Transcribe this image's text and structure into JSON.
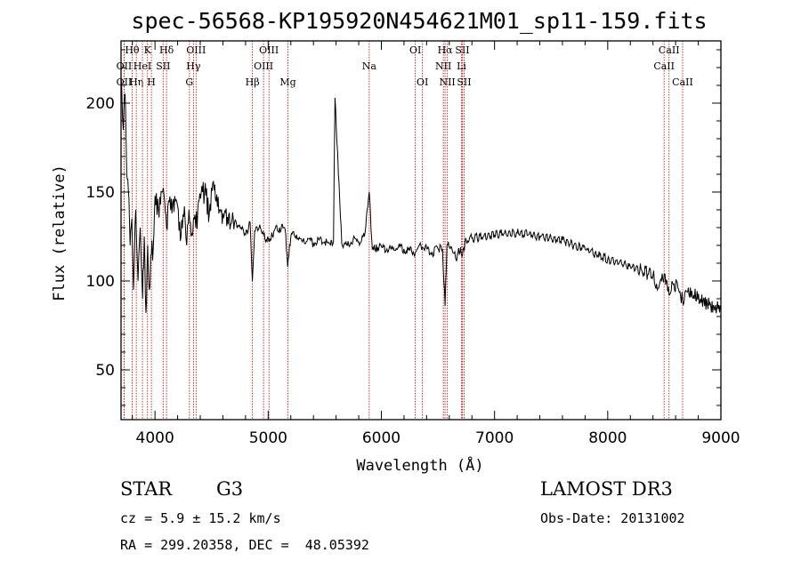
{
  "colors": {
    "line_marker": "#c00000",
    "spectrum": "#000000"
  },
  "info": {
    "object_class": "STAR",
    "subclass": "G3",
    "redshift": "cz = 5.9 ± 15.2 km/s",
    "coords": "RA = 299.20358, DEC =  48.05392",
    "survey": "LAMOST DR3",
    "obs_date": "Obs-Date: 20131002"
  },
  "chart_data": {
    "type": "line",
    "title": "spec-56568-KP195920N454621M01_sp11-159.fits",
    "xlabel": "Wavelength (Å)",
    "ylabel": "Flux (relative)",
    "xlim": [
      3700,
      9000
    ],
    "ylim": [
      22,
      235
    ],
    "xticks": [
      4000,
      5000,
      6000,
      7000,
      8000,
      9000
    ],
    "yticks": [
      50,
      100,
      150,
      200
    ],
    "series": [
      {
        "name": "spectrum",
        "x": [
          3700,
          3720,
          3735,
          3750,
          3765,
          3780,
          3795,
          3810,
          3830,
          3850,
          3870,
          3890,
          3905,
          3920,
          3935,
          3950,
          3968,
          3985,
          4000,
          4030,
          4060,
          4080,
          4102,
          4120,
          4150,
          4180,
          4200,
          4230,
          4260,
          4280,
          4300,
          4320,
          4340,
          4360,
          4390,
          4420,
          4450,
          4480,
          4510,
          4540,
          4570,
          4600,
          4640,
          4680,
          4720,
          4760,
          4800,
          4840,
          4861,
          4880,
          4920,
          4960,
          5007,
          5050,
          5100,
          5150,
          5172,
          5200,
          5250,
          5300,
          5350,
          5400,
          5450,
          5500,
          5550,
          5577,
          5590,
          5650,
          5700,
          5750,
          5800,
          5850,
          5893,
          5920,
          5980,
          6050,
          6100,
          6150,
          6200,
          6250,
          6300,
          6350,
          6400,
          6450,
          6500,
          6540,
          6563,
          6580,
          6620,
          6660,
          6700,
          6716,
          6750,
          6800,
          6900,
          7000,
          7100,
          7200,
          7300,
          7400,
          7500,
          7600,
          7700,
          7800,
          7900,
          8000,
          8100,
          8200,
          8300,
          8400,
          8450,
          8500,
          8542,
          8580,
          8620,
          8662,
          8700,
          8760,
          8820,
          8880,
          8940,
          9000
        ],
        "y": [
          215,
          185,
          205,
          160,
          150,
          120,
          135,
          95,
          140,
          100,
          130,
          90,
          125,
          82,
          120,
          95,
          115,
          118,
          148,
          140,
          150,
          148,
          130,
          145,
          138,
          145,
          142,
          125,
          142,
          120,
          140,
          125,
          135,
          130,
          145,
          150,
          148,
          138,
          155,
          145,
          140,
          138,
          136,
          134,
          132,
          130,
          126,
          133,
          100,
          128,
          130,
          126,
          122,
          128,
          130,
          129,
          108,
          125,
          126,
          122,
          124,
          121,
          123,
          122,
          120,
          122,
          203,
          121,
          120,
          123,
          122,
          125,
          150,
          118,
          119,
          118,
          118,
          119,
          118,
          117,
          116,
          120,
          118,
          116,
          118,
          118,
          86,
          120,
          119,
          112,
          119,
          114,
          123,
          124,
          125,
          126,
          127,
          127,
          126,
          125,
          124,
          123,
          120,
          118,
          115,
          112,
          110,
          108,
          106,
          103,
          96,
          104,
          92,
          98,
          96,
          89,
          94,
          92,
          90,
          87,
          85,
          84
        ]
      }
    ],
    "lines": [
      {
        "name": "OII",
        "wave": 3727,
        "row": 1
      },
      {
        "name": "Hθ",
        "wave": 3798,
        "row": 0
      },
      {
        "name": "OII",
        "wave": 3727,
        "row": 2
      },
      {
        "name": "Hη",
        "wave": 3835,
        "row": 2
      },
      {
        "name": "HeI",
        "wave": 3889,
        "row": 1
      },
      {
        "name": "K",
        "wave": 3934,
        "row": 0
      },
      {
        "name": "SII",
        "wave": 4072,
        "row": 1
      },
      {
        "name": "H",
        "wave": 3968,
        "row": 2
      },
      {
        "name": "Hδ",
        "wave": 4102,
        "row": 0
      },
      {
        "name": "OIII",
        "wave": 4363,
        "row": 0
      },
      {
        "name": "Hγ",
        "wave": 4340,
        "row": 1
      },
      {
        "name": "G",
        "wave": 4304,
        "row": 2
      },
      {
        "name": "Hβ",
        "wave": 4861,
        "row": 2
      },
      {
        "name": "OIII",
        "wave": 5007,
        "row": 0
      },
      {
        "name": "OIII",
        "wave": 4959,
        "row": 1
      },
      {
        "name": "Mg",
        "wave": 5175,
        "row": 2
      },
      {
        "name": "Na",
        "wave": 5893,
        "row": 1
      },
      {
        "name": "OI",
        "wave": 6300,
        "row": 0
      },
      {
        "name": "OI",
        "wave": 6363,
        "row": 2
      },
      {
        "name": "Hα",
        "wave": 6563,
        "row": 0
      },
      {
        "name": "NII",
        "wave": 6548,
        "row": 1
      },
      {
        "name": "NII",
        "wave": 6583,
        "row": 2
      },
      {
        "name": "SII",
        "wave": 6716,
        "row": 0
      },
      {
        "name": "Li",
        "wave": 6708,
        "row": 1
      },
      {
        "name": "SII",
        "wave": 6731,
        "row": 2
      },
      {
        "name": "CaII",
        "wave": 8542,
        "row": 0
      },
      {
        "name": "CaII",
        "wave": 8498,
        "row": 1
      },
      {
        "name": "CaII",
        "wave": 8662,
        "row": 2
      }
    ]
  }
}
